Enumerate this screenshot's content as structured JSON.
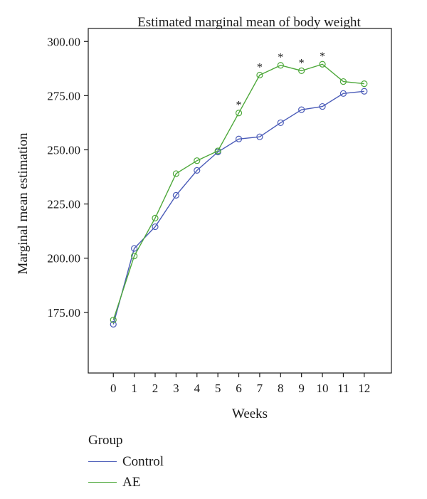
{
  "chart_data": {
    "type": "line",
    "title": "Estimated marginal mean of body weight",
    "xlabel": "Weeks",
    "ylabel": "Marginal mean estimation",
    "x": [
      0,
      1,
      2,
      3,
      4,
      5,
      6,
      7,
      8,
      9,
      10,
      11,
      12
    ],
    "x_ticks": [
      "0",
      "1",
      "2",
      "3",
      "4",
      "5",
      "6",
      "7",
      "8",
      "9",
      "10",
      "11",
      "12"
    ],
    "y_ticks": [
      "175.00",
      "200.00",
      "225.00",
      "250.00",
      "275.00",
      "300.00"
    ],
    "ylim": [
      147,
      306
    ],
    "xlim": [
      -1.2,
      13.3
    ],
    "grid": false,
    "legend_position": "bottom-left",
    "series": [
      {
        "name": "Control",
        "color": "#4a5bb8",
        "values": [
          169.5,
          204.5,
          214.5,
          229.0,
          240.5,
          249.0,
          255.0,
          256.0,
          262.5,
          268.5,
          270.0,
          276.0,
          277.0
        ]
      },
      {
        "name": "AE",
        "color": "#4da83a",
        "values": [
          171.5,
          201.0,
          218.5,
          239.0,
          245.0,
          249.5,
          267.0,
          284.5,
          289.0,
          286.5,
          289.5,
          281.5,
          280.5
        ]
      }
    ],
    "annotations": [
      {
        "x": 6,
        "text": "*"
      },
      {
        "x": 7,
        "text": "*"
      },
      {
        "x": 8,
        "text": "*"
      },
      {
        "x": 9,
        "text": "*"
      },
      {
        "x": 10,
        "text": "*"
      }
    ]
  },
  "legend": {
    "title": "Group",
    "items": [
      {
        "label": "Control",
        "color": "#4a5bb8"
      },
      {
        "label": "AE",
        "color": "#4da83a"
      }
    ]
  }
}
